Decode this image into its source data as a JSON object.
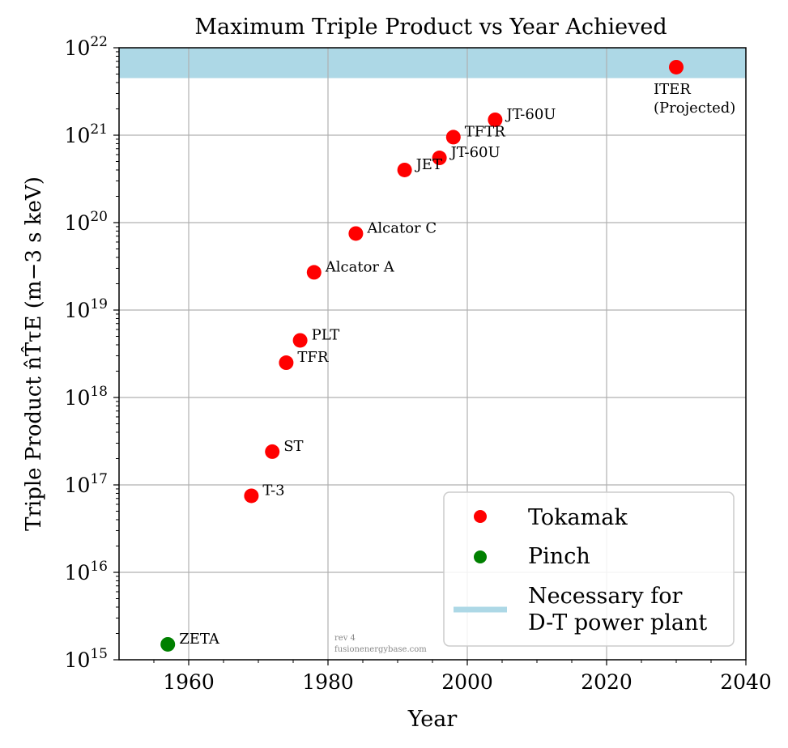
{
  "chart_data": {
    "type": "scatter",
    "title": "Maximum Triple Product vs Year Achieved",
    "xlabel": "Year",
    "ylabel": "Triple Product n̂T̂τE (m−3 s keV)",
    "xlim": [
      1950,
      2040
    ],
    "ylim": [
      1000000000000000.0,
      1e+22
    ],
    "yscale": "log",
    "grid": true,
    "legend_position": "bottom-right",
    "x_ticks": [
      "1960",
      "1980",
      "2000",
      "2020",
      "2040"
    ],
    "y_ticks": [
      {
        "base": "10",
        "exp": "15"
      },
      {
        "base": "10",
        "exp": "16"
      },
      {
        "base": "10",
        "exp": "17"
      },
      {
        "base": "10",
        "exp": "18"
      },
      {
        "base": "10",
        "exp": "19"
      },
      {
        "base": "10",
        "exp": "20"
      },
      {
        "base": "10",
        "exp": "21"
      },
      {
        "base": "10",
        "exp": "22"
      }
    ],
    "band": {
      "name": "Necessary for D-T power plant",
      "name_lines": [
        "Necessary for",
        "D-T power plant"
      ],
      "ymin": 4.5e+21,
      "ymax": 1e+22,
      "color": "#add8e6"
    },
    "series": [
      {
        "name": "Tokamak",
        "color": "#ff0000",
        "points": [
          {
            "x": 1969,
            "y": 7.5e+16,
            "label": "T-3"
          },
          {
            "x": 1972,
            "y": 2.4e+17,
            "label": "ST"
          },
          {
            "x": 1974,
            "y": 2.5e+18,
            "label": "TFR"
          },
          {
            "x": 1976,
            "y": 4.5e+18,
            "label": "PLT"
          },
          {
            "x": 1978,
            "y": 2.7e+19,
            "label": "Alcator A"
          },
          {
            "x": 1984,
            "y": 7.5e+19,
            "label": "Alcator C"
          },
          {
            "x": 1991,
            "y": 4e+20,
            "label": "JET"
          },
          {
            "x": 1996,
            "y": 5.5e+20,
            "label": "JT-60U"
          },
          {
            "x": 1998,
            "y": 9.5e+20,
            "label": "TFTR"
          },
          {
            "x": 2004,
            "y": 1.5e+21,
            "label": "JT-60U"
          },
          {
            "x": 2030,
            "y": 6e+21,
            "label": "ITER",
            "label_line2": "(Projected)"
          }
        ]
      },
      {
        "name": "Pinch",
        "color": "#008000",
        "points": [
          {
            "x": 1957,
            "y": 1500000000000000.0,
            "label": "ZETA"
          }
        ]
      }
    ],
    "watermark": [
      "rev 4",
      "fusionenergybase.com"
    ]
  }
}
